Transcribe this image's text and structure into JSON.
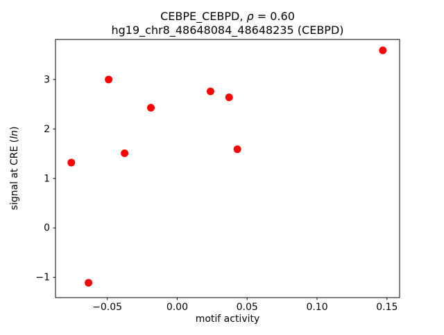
{
  "chart_data": {
    "type": "scatter",
    "title_line1": {
      "prefix": "CEBPE_CEBPD, ",
      "rho": "ρ",
      "equals": " = 0.60"
    },
    "title_line2": "hg19_chr8_48648084_48648235 (CEBPD)",
    "xlabel": "motif activity",
    "ylabel": {
      "prefix": "signal at CRE (",
      "italic": "ln",
      "suffix": ")"
    },
    "marker_color": "#ff0000",
    "axis_color": "#000000",
    "xlim": [
      -0.087,
      0.159
    ],
    "ylim": [
      -1.41,
      3.81
    ],
    "grid": false,
    "legend": "none",
    "xticks": [
      {
        "value": -0.05,
        "label": "−0.05"
      },
      {
        "value": 0.0,
        "label": "0.00"
      },
      {
        "value": 0.05,
        "label": "0.05"
      },
      {
        "value": 0.1,
        "label": "0.10"
      },
      {
        "value": 0.15,
        "label": "0.15"
      }
    ],
    "yticks": [
      {
        "value": -1,
        "label": "−1"
      },
      {
        "value": 0,
        "label": "0"
      },
      {
        "value": 1,
        "label": "1"
      },
      {
        "value": 2,
        "label": "2"
      },
      {
        "value": 3,
        "label": "3"
      }
    ],
    "points": [
      {
        "x": -0.0757,
        "y": 1.32
      },
      {
        "x": -0.0634,
        "y": -1.11
      },
      {
        "x": -0.049,
        "y": 3.0
      },
      {
        "x": -0.0376,
        "y": 1.51
      },
      {
        "x": -0.0188,
        "y": 2.43
      },
      {
        "x": 0.0238,
        "y": 2.76
      },
      {
        "x": 0.0371,
        "y": 2.64
      },
      {
        "x": 0.043,
        "y": 1.59
      },
      {
        "x": 0.147,
        "y": 3.59
      }
    ]
  }
}
